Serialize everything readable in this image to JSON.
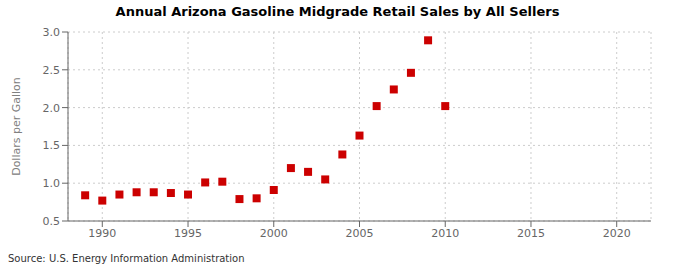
{
  "chart_data": {
    "type": "scatter",
    "title": "Annual Arizona Gasoline Midgrade Retail Sales by All Sellers",
    "ylabel": "Dollars per Gallon",
    "annotation": "Source: U.S. Energy Information Administration",
    "x": [
      1989,
      1990,
      1991,
      1992,
      1993,
      1994,
      1995,
      1996,
      1997,
      1998,
      1999,
      2000,
      2001,
      2002,
      2003,
      2004,
      2005,
      2006,
      2007,
      2008,
      2009,
      2010
    ],
    "values": [
      0.84,
      0.77,
      0.85,
      0.88,
      0.88,
      0.87,
      0.85,
      1.01,
      1.02,
      0.79,
      0.8,
      0.91,
      1.2,
      1.15,
      1.05,
      1.38,
      1.63,
      2.02,
      2.24,
      2.46,
      2.89,
      2.02
    ],
    "color": "#cc0000",
    "marker": "square",
    "xlim": [
      1988,
      2022
    ],
    "ylim": [
      0.5,
      3.0
    ],
    "xticks": [
      1990,
      1995,
      2000,
      2005,
      2010,
      2015,
      2020
    ],
    "yticks": [
      0.5,
      {
        "value": 1.0,
        "label": "1.0"
      },
      1.5,
      {
        "value": 2.0,
        "label": "2.0"
      },
      2.5,
      {
        "value": 3.0,
        "label": "3.0"
      }
    ],
    "grid": true
  }
}
